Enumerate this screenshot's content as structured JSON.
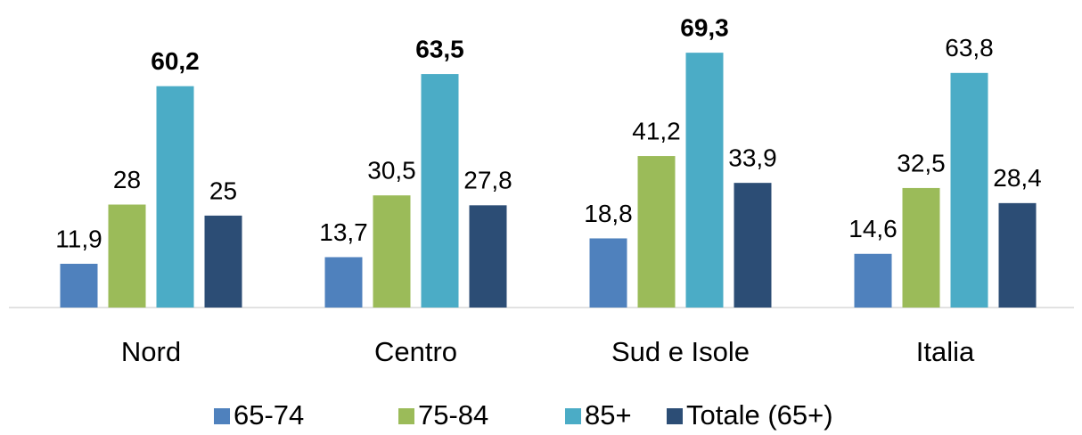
{
  "chart_data": {
    "type": "bar",
    "categories": [
      "Nord",
      "Centro",
      "Sud e Isole",
      "Italia"
    ],
    "series": [
      {
        "name": "65-74",
        "color": "#4f81bd",
        "values": [
          11.9,
          13.7,
          18.8,
          14.6
        ],
        "value_labels": [
          "11,9",
          "13,7",
          "18,8",
          "14,6"
        ]
      },
      {
        "name": "75-84",
        "color": "#9bbb59",
        "values": [
          28,
          30.5,
          41.2,
          32.5
        ],
        "value_labels": [
          "28",
          "30,5",
          "41,2",
          "32,5"
        ]
      },
      {
        "name": "85+",
        "color": "#4bacc6",
        "values": [
          60.2,
          63.5,
          69.3,
          63.8
        ],
        "value_labels": [
          "60,2",
          "63,5",
          "69,3",
          "63,8"
        ]
      },
      {
        "name": "Totale (65+)",
        "color": "#2c4d75",
        "values": [
          25,
          27.8,
          33.9,
          28.4
        ],
        "value_labels": [
          "25",
          "27,8",
          "33,9",
          "28,4"
        ]
      }
    ],
    "ylim": [
      0,
      80
    ],
    "grid": false,
    "legend": "bottom"
  }
}
